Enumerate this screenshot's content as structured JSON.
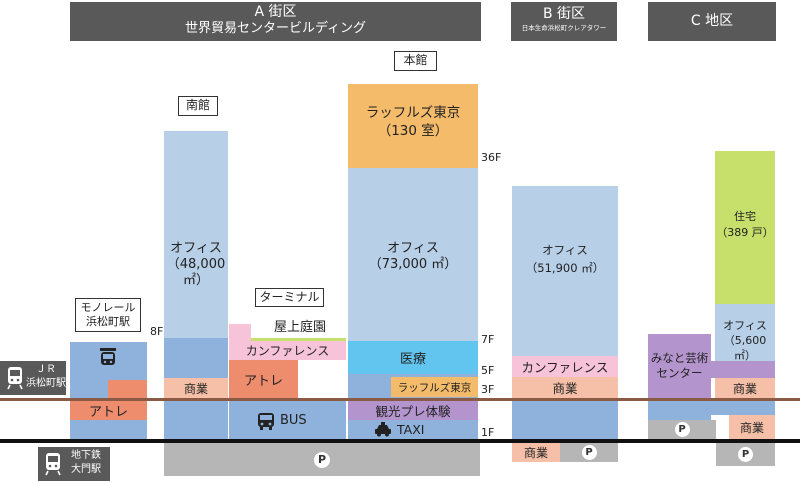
{
  "headers": {
    "a": {
      "line1": "A 街区",
      "line2": "世界貿易センタービルディング"
    },
    "b": {
      "line1": "B 街区",
      "line2": "日本生命浜松町クレアタワー"
    },
    "c": {
      "line1": "C 地区"
    }
  },
  "labels": {
    "honkan": "本館",
    "nankan": "南館",
    "monorail": "モノレール\n浜松町駅",
    "terminal": "ターミナル"
  },
  "floors": {
    "f36": "36F",
    "f8": "8F",
    "f7": "7F",
    "f5": "5F",
    "f3": "3F",
    "f1": "1F"
  },
  "rail": {
    "jr": "ＪＲ\n浜松町駅",
    "subway": "地下鉄\n大門駅"
  },
  "nankan": {
    "office": "オフィス\n（48,000 ㎡）",
    "shops": "商業"
  },
  "honkan": {
    "hotel": "ラッフルズ東京\n（130 室）",
    "office": "オフィス\n（73,000 ㎡）",
    "medical": "医療",
    "raffles_3f": "ラッフルズ東京",
    "experience": "観光プレ体験",
    "taxi": "TAXI"
  },
  "terminal": {
    "garden": "屋上庭園",
    "conference": "カンファレンス",
    "atre": "アトレ",
    "bus": "BUS"
  },
  "monorail_area": {
    "atre": "アトレ"
  },
  "b_tower": {
    "office": "オフィス\n（51,900 ㎡）",
    "conference": "カンファレンス",
    "shops": "商業",
    "shops_b1": "商業"
  },
  "c_area": {
    "residence": "住宅\n（389 戸）",
    "office": "オフィス\n（5,600 ㎡）",
    "arts_center": "みなと芸術\nセンター",
    "shops": "商業",
    "shops_b1": "商業"
  },
  "parking_symbol": "P",
  "colors": {
    "office": "#b8cfe8",
    "lower_block": "#8fb2dc",
    "hotel": "#f3bb6a",
    "commerce": "#f6c0a8",
    "atre": "#ee8c6e",
    "conference": "#f7c3d8",
    "medical": "#62c5ef",
    "experience": "#b394cc",
    "residence": "#c7df6b",
    "parking": "#b6b6b6",
    "header": "#595959",
    "ground_line": "#8a5a45",
    "underground_line": "#111111"
  }
}
